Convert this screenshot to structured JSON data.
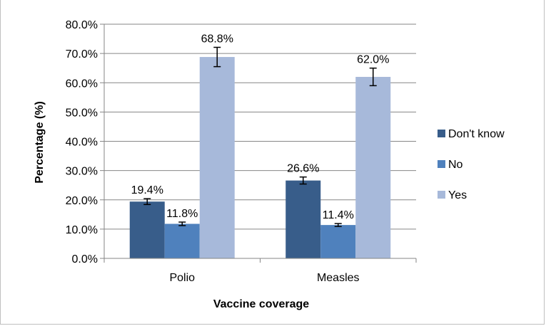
{
  "chart_data": {
    "type": "bar",
    "xlabel": "Vaccine coverage",
    "ylabel": "Percentage (%)",
    "ylim": [
      0,
      80
    ],
    "yticks": [
      "0.0%",
      "10.0%",
      "20.0%",
      "30.0%",
      "40.0%",
      "50.0%",
      "60.0%",
      "70.0%",
      "80.0%"
    ],
    "ytick_values": [
      0,
      10,
      20,
      30,
      40,
      50,
      60,
      70,
      80
    ],
    "grid": true,
    "legend_position": "right",
    "categories": [
      "Polio",
      "Measles"
    ],
    "series": [
      {
        "name": "Don't know",
        "color": "#385d8a",
        "values": [
          19.4,
          26.6
        ],
        "labels": [
          "19.4%",
          "26.6%"
        ],
        "error": [
          1.0,
          1.2
        ]
      },
      {
        "name": "No",
        "color": "#4f81bd",
        "values": [
          11.8,
          11.4
        ],
        "labels": [
          "11.8%",
          "11.4%"
        ],
        "error": [
          0.6,
          0.5
        ]
      },
      {
        "name": "Yes",
        "color": "#a7b9da",
        "values": [
          68.8,
          62.0
        ],
        "labels": [
          "68.8%",
          "62.0%"
        ],
        "error": [
          3.3,
          3.0
        ]
      }
    ]
  }
}
